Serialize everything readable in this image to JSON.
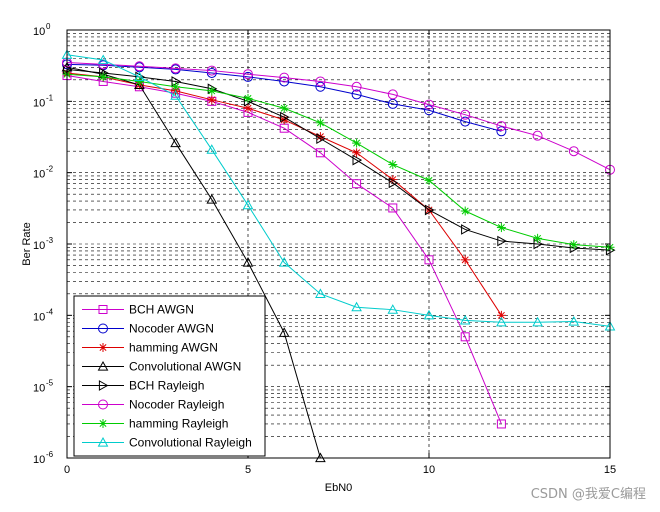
{
  "chart_data": {
    "type": "line",
    "xlabel": "EbN0",
    "ylabel": "Ber Rate",
    "xlim": [
      0,
      15
    ],
    "ylim_log10": [
      -6,
      0
    ],
    "y_scale": "log",
    "grid": "dashed",
    "legend_position": "bottom-left",
    "x_ticks": [
      "0",
      "5",
      "10",
      "15"
    ],
    "y_ticks": [
      {
        "base": "10",
        "exp": "0"
      },
      {
        "base": "10",
        "exp": "-1"
      },
      {
        "base": "10",
        "exp": "-2"
      },
      {
        "base": "10",
        "exp": "-3"
      },
      {
        "base": "10",
        "exp": "-4"
      },
      {
        "base": "10",
        "exp": "-5"
      },
      {
        "base": "10",
        "exp": "-6"
      }
    ],
    "series": [
      {
        "name": "BCH AWGN",
        "color": "#cc00cc",
        "marker": "square",
        "x": [
          0,
          1,
          2,
          3,
          4,
          5,
          6,
          7,
          8,
          9,
          10,
          11,
          12
        ],
        "y": [
          0.23,
          0.19,
          0.16,
          0.13,
          0.1,
          0.07,
          0.042,
          0.019,
          0.007,
          0.0032,
          0.0006,
          5e-05,
          3e-06
        ]
      },
      {
        "name": "Nocoder AWGN",
        "color": "#0000cc",
        "marker": "circle",
        "x": [
          0,
          1,
          2,
          3,
          4,
          5,
          6,
          7,
          8,
          9,
          10,
          11,
          12
        ],
        "y": [
          0.33,
          0.32,
          0.3,
          0.28,
          0.25,
          0.22,
          0.19,
          0.16,
          0.125,
          0.092,
          0.075,
          0.052,
          0.038
        ]
      },
      {
        "name": "hamming AWGN",
        "color": "#dd0000",
        "marker": "star",
        "x": [
          0,
          1,
          2,
          3,
          4,
          5,
          6,
          7,
          8,
          9,
          10,
          11,
          12
        ],
        "y": [
          0.25,
          0.22,
          0.17,
          0.14,
          0.105,
          0.08,
          0.055,
          0.032,
          0.019,
          0.008,
          0.003,
          0.0006,
          0.0001
        ]
      },
      {
        "name": "Convolutional AWGN",
        "color": "#000000",
        "marker": "triangle-up",
        "x": [
          0,
          1,
          2,
          3,
          4,
          5,
          6,
          7
        ],
        "y": [
          0.3,
          0.24,
          0.17,
          0.026,
          0.0042,
          0.00055,
          5.7e-05,
          1e-06
        ]
      },
      {
        "name": "BCH Rayleigh",
        "color": "#000000",
        "marker": "triangle-right",
        "x": [
          0,
          1,
          2,
          3,
          4,
          5,
          6,
          7,
          8,
          9,
          10,
          11,
          12,
          13,
          14,
          15
        ],
        "y": [
          0.28,
          0.25,
          0.22,
          0.19,
          0.15,
          0.1,
          0.06,
          0.03,
          0.015,
          0.0072,
          0.003,
          0.0016,
          0.0011,
          0.001,
          0.00088,
          0.00082
        ]
      },
      {
        "name": "Nocoder Rayleigh",
        "color": "#cc00cc",
        "marker": "circle",
        "x": [
          0,
          1,
          2,
          3,
          4,
          5,
          6,
          7,
          8,
          9,
          10,
          11,
          12,
          13,
          14,
          15
        ],
        "y": [
          0.35,
          0.33,
          0.31,
          0.29,
          0.27,
          0.24,
          0.215,
          0.19,
          0.16,
          0.125,
          0.09,
          0.065,
          0.045,
          0.033,
          0.02,
          0.011
        ]
      },
      {
        "name": "hamming Rayleigh",
        "color": "#00cc00",
        "marker": "star",
        "x": [
          0,
          1,
          2,
          3,
          4,
          5,
          6,
          7,
          8,
          9,
          10,
          11,
          12,
          13,
          14,
          15
        ],
        "y": [
          0.24,
          0.22,
          0.19,
          0.16,
          0.14,
          0.11,
          0.08,
          0.05,
          0.026,
          0.013,
          0.0078,
          0.0029,
          0.0017,
          0.0012,
          0.00098,
          0.0009
        ]
      },
      {
        "name": "Convolutional Rayleigh",
        "color": "#00cccc",
        "marker": "triangle-up",
        "x": [
          0,
          1,
          2,
          3,
          4,
          5,
          6,
          7,
          8,
          9,
          10,
          11,
          12,
          13,
          14,
          15
        ],
        "y": [
          0.45,
          0.38,
          0.22,
          0.12,
          0.021,
          0.0035,
          0.00055,
          0.0002,
          0.00013,
          0.00012,
          0.0001,
          8.5e-05,
          8e-05,
          8e-05,
          8.2e-05,
          7e-05
        ]
      }
    ]
  },
  "watermark": "CSDN @我爱C编程"
}
